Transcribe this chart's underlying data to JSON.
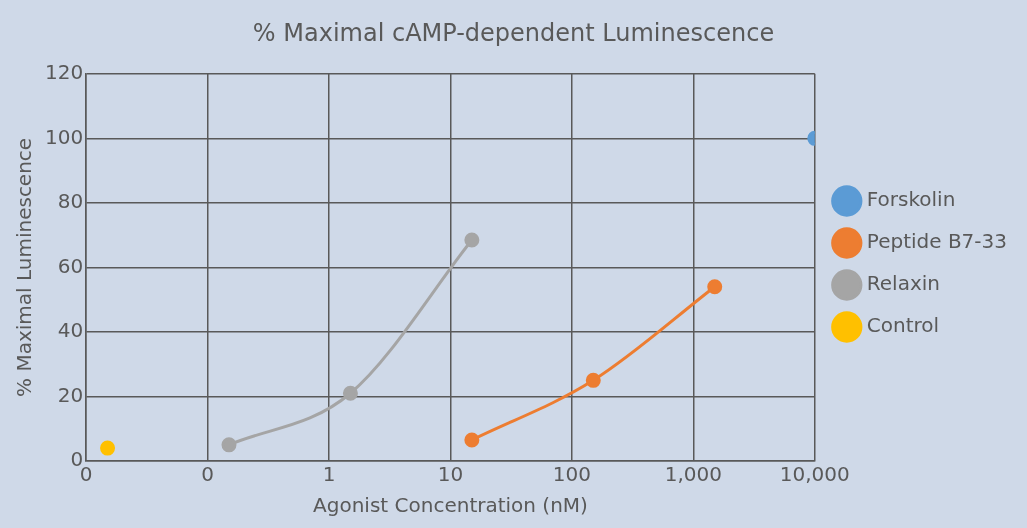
{
  "chart_data": {
    "type": "line",
    "title": "% Maximal cAMP-dependent Luminescence",
    "xlabel": "Agonist Concentration (nM)",
    "ylabel": "% Maximal Luminescence",
    "log": "x",
    "xlim": [
      0.01,
      10000
    ],
    "xticks": [
      {
        "value": 0.01,
        "label": "0"
      },
      {
        "value": 0.1,
        "label": "0"
      },
      1,
      10,
      100,
      {
        "value": 1000,
        "label": "1,000"
      },
      {
        "value": 10000,
        "label": "10,000"
      }
    ],
    "ylim": [
      0,
      120
    ],
    "yticks": [
      0,
      20,
      40,
      60,
      80,
      100,
      120
    ],
    "grid": true,
    "legend": "right",
    "marker": "circle",
    "line_style": "solid",
    "series": [
      {
        "name": "Forskolin",
        "color": "#5b9bd5",
        "x": [
          10000
        ],
        "values": [
          100
        ]
      },
      {
        "name": "Peptide B7-33",
        "color": "#ed7d31",
        "x": [
          15,
          150,
          1500
        ],
        "values": [
          6.5,
          25,
          54
        ]
      },
      {
        "name": "Relaxin",
        "color": "#a5a5a5",
        "x": [
          0.15,
          1.5,
          15
        ],
        "values": [
          5,
          21,
          68.5
        ]
      },
      {
        "name": "Control",
        "color": "#ffc000",
        "x": [
          0.015
        ],
        "values": [
          4
        ]
      }
    ]
  }
}
